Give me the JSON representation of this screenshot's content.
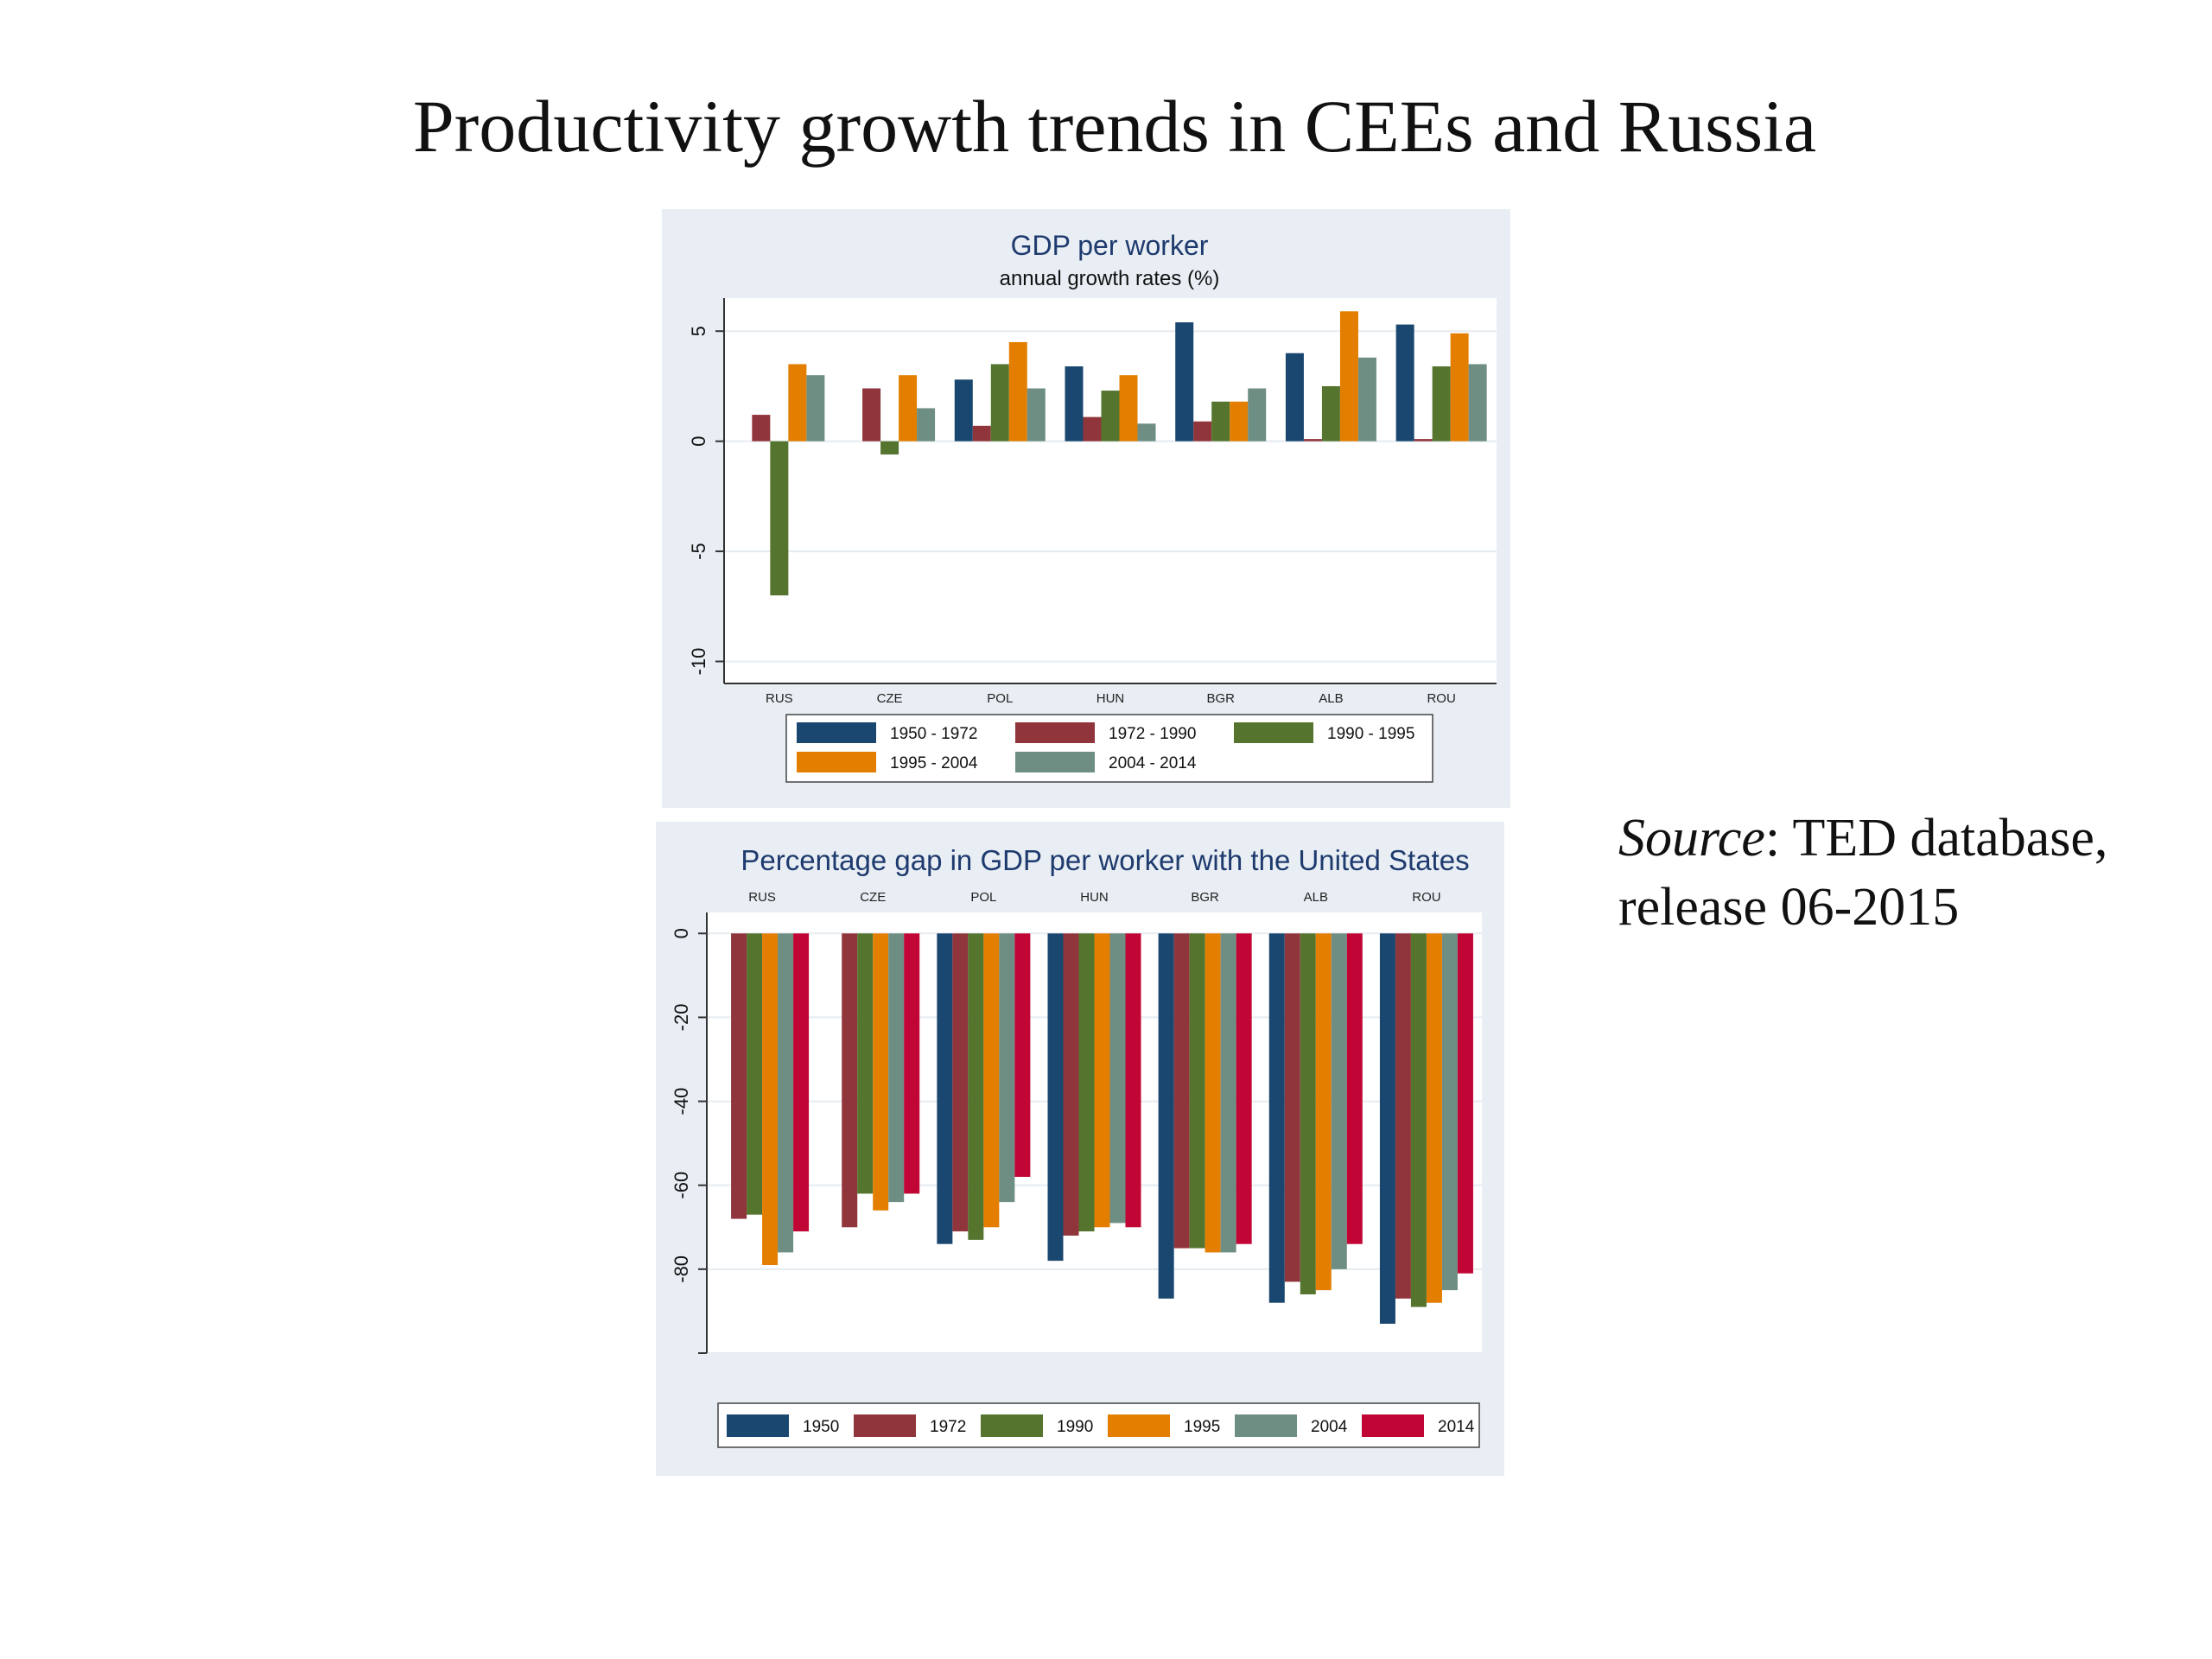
{
  "slide": {
    "title": "Productivity growth trends in CEEs and Russia",
    "source_label": "Source",
    "source_text": ": TED database, release 06-2015"
  },
  "chart_data": [
    {
      "type": "bar",
      "title": "GDP per worker",
      "subtitle": "annual growth rates (%)",
      "xlabel": "",
      "ylabel": "",
      "categories": [
        "RUS",
        "CZE",
        "POL",
        "HUN",
        "BGR",
        "ALB",
        "ROU"
      ],
      "ylim": [
        -11,
        6.5
      ],
      "yticks": [
        5,
        0,
        -5,
        -10
      ],
      "grid": true,
      "legend": "bottom",
      "series": [
        {
          "name": "1950 - 1972",
          "color": "#1a476f",
          "values": [
            null,
            null,
            2.8,
            3.4,
            5.4,
            4.0,
            5.3
          ]
        },
        {
          "name": "1972 - 1990",
          "color": "#90353b",
          "values": [
            1.2,
            2.4,
            0.7,
            1.1,
            0.9,
            0.1,
            0.1
          ]
        },
        {
          "name": "1990 - 1995",
          "color": "#55752f",
          "values": [
            -7.0,
            -0.6,
            3.5,
            2.3,
            1.8,
            2.5,
            3.4
          ]
        },
        {
          "name": "1995 - 2004",
          "color": "#e37e00",
          "values": [
            3.5,
            3.0,
            4.5,
            3.0,
            1.8,
            5.9,
            4.9
          ]
        },
        {
          "name": "2004 - 2014",
          "color": "#6e8e84",
          "values": [
            3.0,
            1.5,
            2.4,
            0.8,
            2.4,
            3.8,
            3.5
          ]
        }
      ]
    },
    {
      "type": "bar",
      "title": "Percentage gap in GDP per worker with the United States",
      "xlabel": "",
      "ylabel": "",
      "categories": [
        "RUS",
        "CZE",
        "POL",
        "HUN",
        "BGR",
        "ALB",
        "ROU"
      ],
      "ylim": [
        -100,
        5
      ],
      "yticks": [
        0,
        -20,
        -40,
        -60,
        -80,
        -100
      ],
      "ytick_labels": [
        "0",
        "-20",
        "-40",
        "-60",
        "-80",
        ""
      ],
      "grid": true,
      "legend": "bottom",
      "series": [
        {
          "name": "1950",
          "color": "#1a476f",
          "values": [
            null,
            null,
            -74,
            -78,
            -87,
            -88,
            -93
          ]
        },
        {
          "name": "1972",
          "color": "#90353b",
          "values": [
            -68,
            -70,
            -71,
            -72,
            -75,
            -83,
            -87
          ]
        },
        {
          "name": "1990",
          "color": "#55752f",
          "values": [
            -67,
            -62,
            -73,
            -71,
            -75,
            -86,
            -89
          ]
        },
        {
          "name": "1995",
          "color": "#e37e00",
          "values": [
            -79,
            -66,
            -70,
            -70,
            -76,
            -85,
            -88
          ]
        },
        {
          "name": "2004",
          "color": "#6e8e84",
          "values": [
            -76,
            -64,
            -64,
            -69,
            -76,
            -80,
            -85
          ]
        },
        {
          "name": "2014",
          "color": "#c10534",
          "values": [
            -71,
            -62,
            -58,
            -70,
            -74,
            -74,
            -81
          ]
        }
      ]
    }
  ]
}
